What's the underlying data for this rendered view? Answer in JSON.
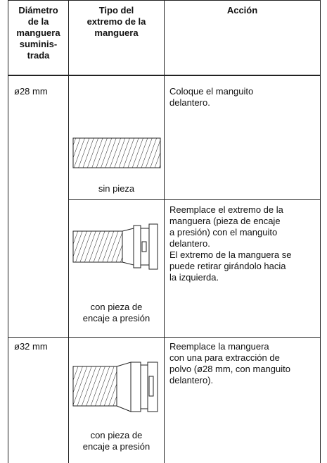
{
  "table": {
    "header": [
      [
        "Diámetro",
        "de la",
        "manguera",
        "suminis-",
        "trada"
      ],
      [
        "Tipo del",
        "extremo de la",
        "manguera"
      ],
      [
        "Acción"
      ]
    ],
    "groups": [
      {
        "diameter": "ø28 mm",
        "variants": [
          {
            "end_type": [
              "sin pieza"
            ],
            "action": [
              "Coloque el manguito",
              "delantero."
            ]
          },
          {
            "end_type": [
              "con pieza de",
              "encaje a presión"
            ],
            "action": [
              "Reemplace el extremo de la",
              "manguera (pieza de encaje",
              "a presión) con el manguito",
              "delantero.",
              "El extremo de la manguera se",
              "puede retirar girándolo hacia",
              "la izquierda."
            ]
          }
        ]
      },
      {
        "diameter": "ø32 mm",
        "variants": [
          {
            "end_type": [
              "con pieza de",
              "encaje a presión"
            ],
            "action": [
              "Reemplace la manguera",
              "con una para extracción de",
              "polvo (ø28 mm, con manguito",
              "delantero)."
            ]
          }
        ]
      }
    ]
  }
}
